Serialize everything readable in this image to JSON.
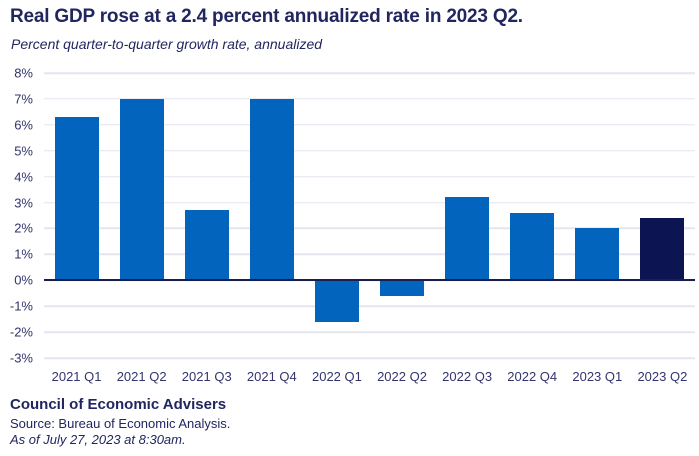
{
  "header": {
    "title": "Real GDP rose at a 2.4 percent annualized rate in 2023 Q2.",
    "subtitle": "Percent quarter-to-quarter growth rate, annualized"
  },
  "footer": {
    "org": "Council of Economic Advisers",
    "source": "Source: Bureau of Economic Analysis.",
    "as_of": "As of July 27, 2023 at 8:30am."
  },
  "colors": {
    "bar": "#0264BD",
    "highlight_bar": "#0D1452",
    "title_text": "#21265F",
    "axis_text": "#32346D",
    "gridline": "#E4E6F0",
    "zero_line": "#191D51",
    "background": "#FFFFFF"
  },
  "chart_data": {
    "type": "bar",
    "title": "Real GDP rose at a 2.4 percent annualized rate in 2023 Q2.",
    "subtitle": "Percent quarter-to-quarter growth rate, annualized",
    "categories": [
      "2021 Q1",
      "2021 Q2",
      "2021 Q3",
      "2021 Q4",
      "2022 Q1",
      "2022 Q2",
      "2022 Q3",
      "2022 Q4",
      "2023 Q1",
      "2023 Q2"
    ],
    "values": [
      6.3,
      7.0,
      2.7,
      7.0,
      -1.6,
      -0.6,
      3.2,
      2.6,
      2.0,
      2.4
    ],
    "highlight_index": 9,
    "xlabel": "",
    "ylabel": "",
    "ylim": [
      -3,
      8
    ],
    "ytick_step": 1,
    "ytick_suffix": "%",
    "grid": true,
    "legend_position": "none"
  }
}
